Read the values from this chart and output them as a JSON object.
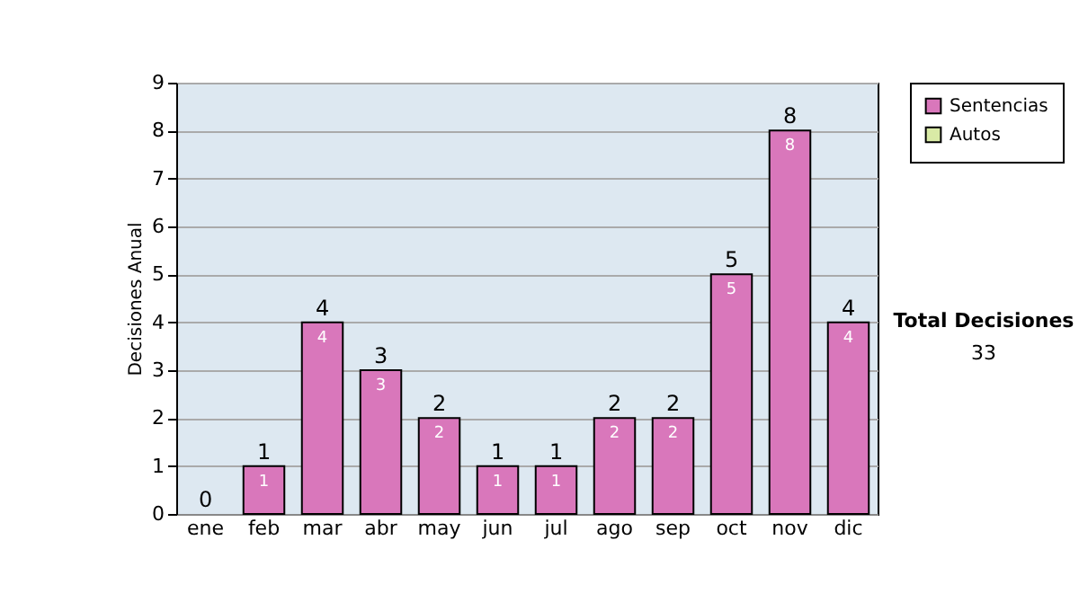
{
  "chart_data": {
    "type": "bar",
    "stacked": true,
    "ylabel": "Decisiones Anual",
    "categories": [
      "ene",
      "feb",
      "mar",
      "abr",
      "may",
      "jun",
      "jul",
      "ago",
      "sep",
      "oct",
      "nov",
      "dic"
    ],
    "series": [
      {
        "name": "Sentencias",
        "color": "#d977bb",
        "values": [
          0,
          1,
          4,
          3,
          2,
          1,
          1,
          2,
          2,
          5,
          8,
          4
        ],
        "value_labels": [
          null,
          "1",
          "4",
          "3",
          "2",
          "1",
          "1",
          "2",
          "2",
          "5",
          "8",
          "4"
        ]
      },
      {
        "name": "Autos",
        "color": "#d9eaa6",
        "values": [
          0,
          0,
          0,
          0,
          0,
          0,
          0,
          0,
          0,
          0,
          0,
          0
        ]
      }
    ],
    "totals": [
      "0",
      "1",
      "4",
      "3",
      "2",
      "1",
      "1",
      "2",
      "2",
      "5",
      "8",
      "4"
    ],
    "ylim": [
      0,
      9
    ],
    "yticks": [
      0,
      1,
      2,
      3,
      4,
      5,
      6,
      7,
      8,
      9
    ],
    "grid": "y",
    "legend": "right",
    "annotations": [
      "Total Decisiones",
      "33"
    ]
  }
}
